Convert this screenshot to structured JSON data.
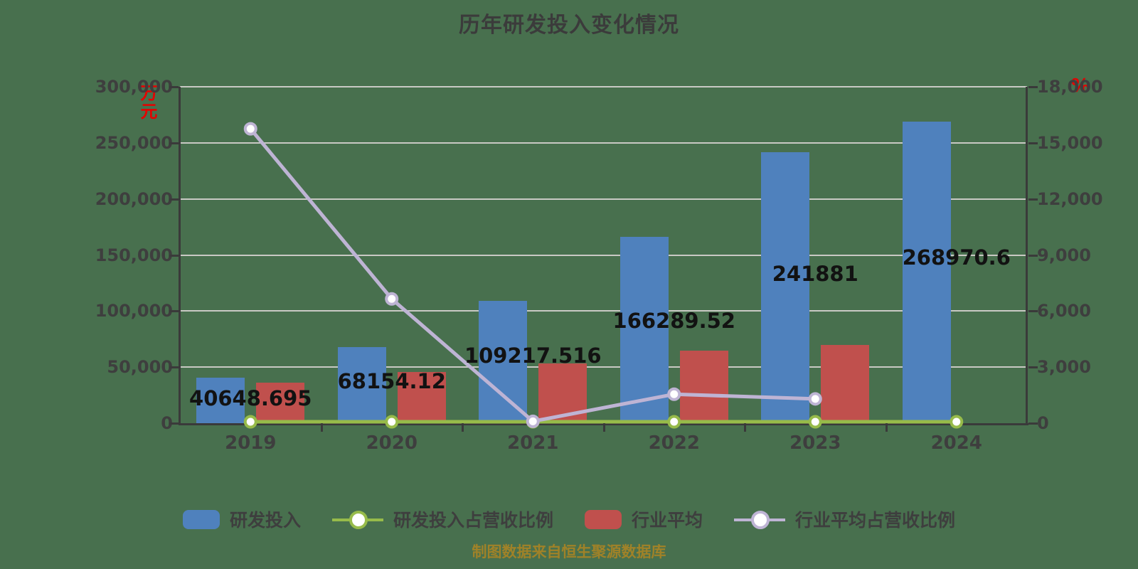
{
  "page": {
    "background_color": "#48704E"
  },
  "chart": {
    "title": "历年研发投入变化情况",
    "left_axis_unit": "万元",
    "right_axis_unit": "%",
    "unit_color": "#E60000"
  },
  "chart_data": {
    "type": "bar+line",
    "title": "历年研发投入变化情况",
    "categories": [
      "2019",
      "2020",
      "2021",
      "2022",
      "2023",
      "2024"
    ],
    "left_axis": {
      "min": 0,
      "max": 300000,
      "tick_step": 50000,
      "unit": "万元"
    },
    "right_axis": {
      "min": 0,
      "max": 18000,
      "tick_step": 3000,
      "unit": "%"
    },
    "grid": true,
    "legend_position": "bottom",
    "series": [
      {
        "name": "研发投入",
        "type": "bar",
        "axis": "left",
        "color": "#4F81BD",
        "values": [
          40648.695,
          68154.12,
          109217.516,
          166289.52,
          241881,
          268970.6
        ],
        "value_labels": [
          "40648.695",
          "68154.12",
          "109217.516",
          "166289.52",
          "241881",
          "268970.6"
        ]
      },
      {
        "name": "研发投入占营收比例",
        "type": "line",
        "axis": "right",
        "color": "#97BB4A",
        "values": [
          0,
          0,
          0,
          0,
          0,
          0
        ]
      },
      {
        "name": "行业平均",
        "type": "bar",
        "axis": "left",
        "color": "#C0504D",
        "values": [
          36200,
          45700,
          53500,
          64500,
          69500,
          null
        ]
      },
      {
        "name": "行业平均占营收比例",
        "type": "line",
        "axis": "right",
        "color": "#BEB4D4",
        "values": [
          15750,
          6650,
          100,
          1550,
          1300,
          null
        ]
      }
    ]
  },
  "legend": {
    "items": [
      {
        "label": "研发投入",
        "marker": "bar",
        "color": "#4F81BD"
      },
      {
        "label": "研发投入占营收比例",
        "marker": "line",
        "color": "#97BB4A"
      },
      {
        "label": "行业平均",
        "marker": "bar",
        "color": "#C0504D"
      },
      {
        "label": "行业平均占营收比例",
        "marker": "line",
        "color": "#BEB4D4"
      }
    ]
  },
  "footer": {
    "credit": "制图数据来自恒生聚源数据库"
  }
}
